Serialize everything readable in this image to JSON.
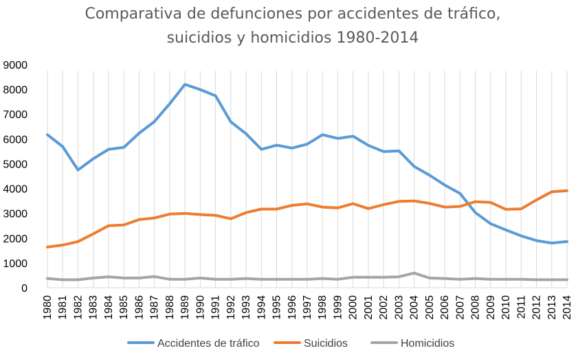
{
  "chart_data": {
    "type": "line",
    "title_lines": [
      "Comparativa de defunciones por accidentes de tráfico,",
      "suicidios y homicidios 1980-2014"
    ],
    "xlabel": "",
    "ylabel": "",
    "ylim": [
      0,
      9000
    ],
    "yticks": [
      "0",
      "1000",
      "2000",
      "3000",
      "4000",
      "5000",
      "6000",
      "7000",
      "8000",
      "9000"
    ],
    "categories": [
      "1980",
      "1981",
      "1982",
      "1983",
      "1984",
      "1985",
      "1986",
      "1987",
      "1988",
      "1989",
      "1990",
      "1991",
      "1992",
      "1993",
      "1994",
      "1995",
      "1996",
      "1997",
      "1998",
      "1999",
      "2000",
      "2001",
      "2002",
      "2003",
      "2004",
      "2005",
      "2006",
      "2007",
      "2008",
      "2009",
      "2010",
      "2011",
      "2012",
      "2013",
      "2014"
    ],
    "grid": "vertical-lines",
    "legend_position": "bottom",
    "series": [
      {
        "name": "Accidentes de tráfico",
        "color": "#5b9bd5",
        "values": [
          6170,
          5690,
          4750,
          5200,
          5580,
          5660,
          6230,
          6700,
          7420,
          8200,
          7990,
          7740,
          6690,
          6210,
          5580,
          5750,
          5630,
          5790,
          6170,
          6020,
          6110,
          5740,
          5490,
          5520,
          4890,
          4540,
          4140,
          3800,
          3030,
          2580,
          2330,
          2090,
          1900,
          1800,
          1860
        ]
      },
      {
        "name": "Suicidios",
        "color": "#ed7d31",
        "values": [
          1640,
          1720,
          1860,
          2170,
          2500,
          2530,
          2750,
          2810,
          2970,
          3000,
          2950,
          2920,
          2780,
          3030,
          3170,
          3170,
          3320,
          3380,
          3250,
          3220,
          3390,
          3190,
          3350,
          3480,
          3500,
          3400,
          3250,
          3280,
          3470,
          3440,
          3160,
          3180,
          3540,
          3870,
          3910
        ]
      },
      {
        "name": "Homicidios",
        "color": "#a5a5a5",
        "values": [
          370,
          320,
          320,
          390,
          440,
          390,
          390,
          450,
          340,
          340,
          390,
          340,
          340,
          370,
          340,
          340,
          340,
          340,
          370,
          340,
          420,
          420,
          420,
          440,
          590,
          390,
          370,
          340,
          370,
          340,
          340,
          340,
          320,
          320,
          320
        ]
      }
    ]
  }
}
